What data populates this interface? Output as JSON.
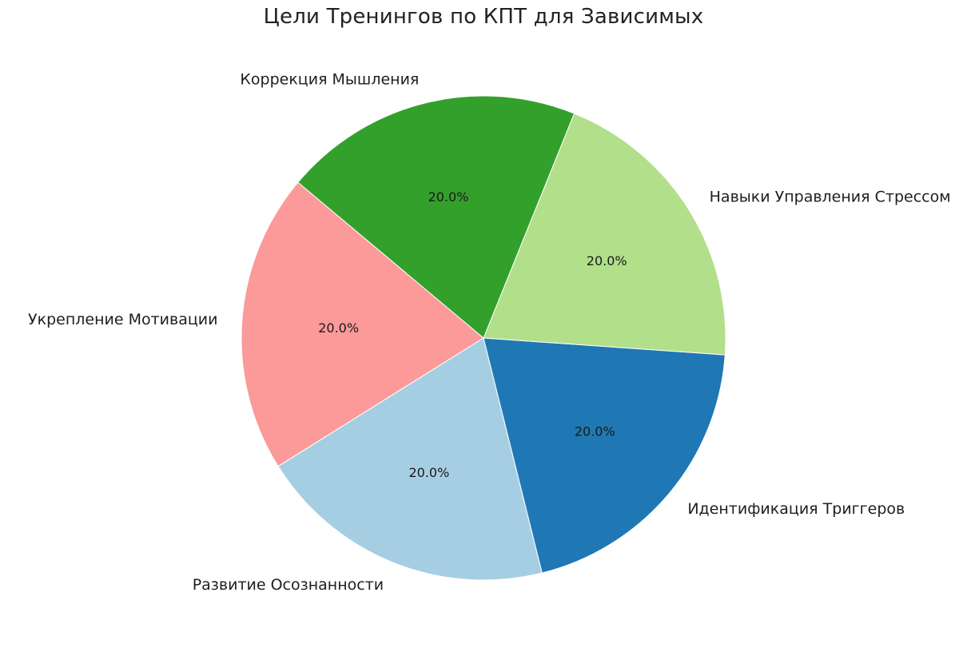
{
  "chart_data": {
    "type": "pie",
    "title": "Цели Тренингов по КПТ для Зависимых",
    "start_angle_deg": 140,
    "direction": "counterclockwise",
    "slices": [
      {
        "label": "Укрепление Мотивации",
        "value": 20.0,
        "pct_label": "20.0%",
        "color": "#fb9a99"
      },
      {
        "label": "Развитие Осознанности",
        "value": 20.0,
        "pct_label": "20.0%",
        "color": "#a6cee3"
      },
      {
        "label": "Идентификация Триггеров",
        "value": 20.0,
        "pct_label": "20.0%",
        "color": "#1f78b4"
      },
      {
        "label": "Навыки Управления Стрессом",
        "value": 20.0,
        "pct_label": "20.0%",
        "color": "#b2df8a"
      },
      {
        "label": "Коррекция Мышления",
        "value": 20.0,
        "pct_label": "20.0%",
        "color": "#33a02c"
      }
    ]
  }
}
